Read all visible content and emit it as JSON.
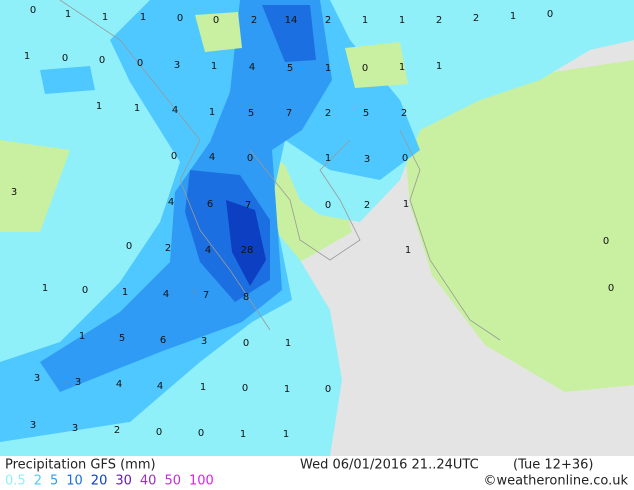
{
  "title": "Precipitation GFS (mm)",
  "valid_time": "Wed 06/01/2016 21..24UTC",
  "lead_time": "(Tue 12+36)",
  "credit": "©weatheronline.co.uk",
  "legend": [
    {
      "value": 0.5,
      "color": "#8ff0fa"
    },
    {
      "value": 2,
      "color": "#4fc8ff"
    },
    {
      "value": 5,
      "color": "#2f9bf5"
    },
    {
      "value": 10,
      "color": "#1c6fe0"
    },
    {
      "value": 20,
      "color": "#0d3fc2"
    },
    {
      "value": 30,
      "color": "#6a1bb0"
    },
    {
      "value": 40,
      "color": "#9b2fc0"
    },
    {
      "value": 50,
      "color": "#c030d0"
    },
    {
      "value": 100,
      "color": "#e020e0"
    }
  ],
  "map_labels": [
    0,
    1,
    1,
    1,
    0,
    0,
    2,
    14,
    2,
    1,
    1,
    2,
    2,
    1,
    0,
    1,
    0,
    0,
    0,
    3,
    1,
    4,
    5,
    1,
    0,
    1,
    1,
    1,
    1,
    4,
    1,
    5,
    7,
    2,
    5,
    2,
    0,
    4,
    0,
    1,
    3,
    0,
    3,
    4,
    6,
    7,
    0,
    2,
    1,
    0,
    2,
    4,
    28,
    1,
    0,
    1,
    0,
    1,
    4,
    7,
    8,
    0,
    1,
    5,
    6,
    3,
    0,
    1,
    3,
    3,
    4,
    4,
    1,
    0,
    1,
    0,
    3,
    3,
    2,
    0,
    0,
    1,
    1
  ]
}
